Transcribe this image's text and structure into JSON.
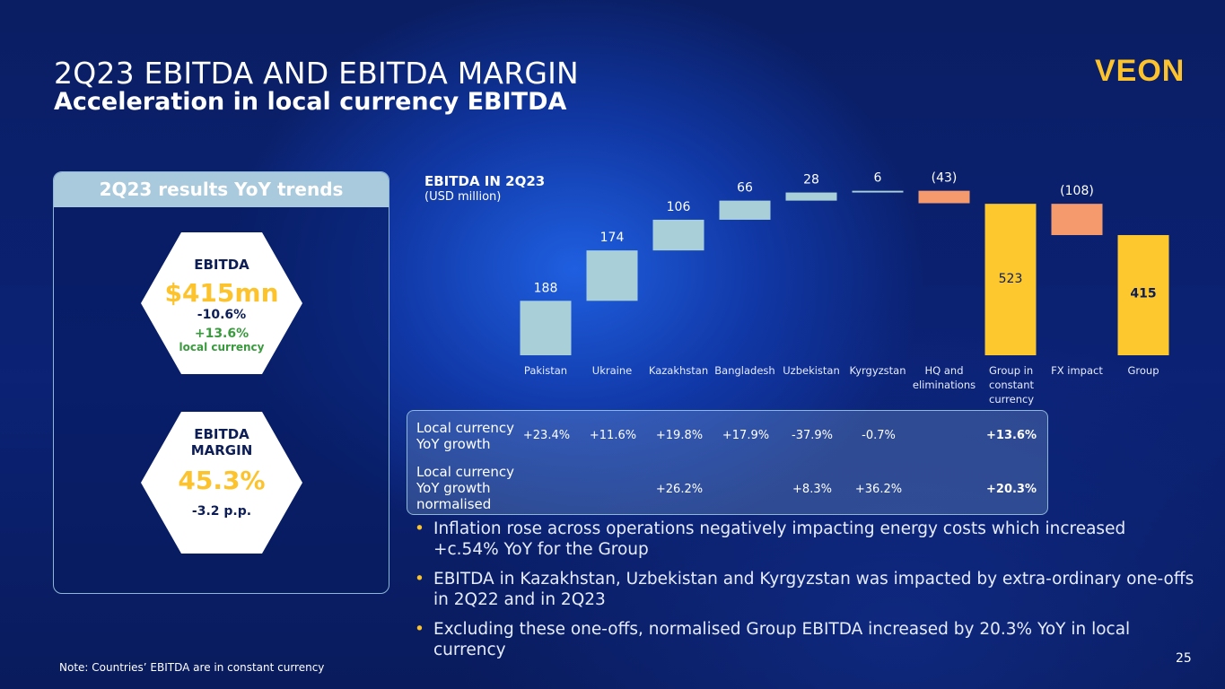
{
  "header": {
    "title": "2Q23 EBITDA AND EBITDA MARGIN",
    "subtitle": "Acceleration in local currency EBITDA",
    "logo_text": "VEON"
  },
  "panel": {
    "heading": "2Q23 results YoY trends",
    "ebitda": {
      "label": "EBITDA",
      "value": "$415mn",
      "change": "-10.6%",
      "local_change": "+13.6%",
      "local_label": "local currency"
    },
    "margin": {
      "label_line1": "EBITDA",
      "label_line2": "MARGIN",
      "value": "45.3%",
      "change": "-3.2 p.p."
    }
  },
  "chart_data": {
    "type": "waterfall",
    "title": "EBITDA IN 2Q23",
    "unit": "(USD million)",
    "categories": [
      "Pakistan",
      "Ukraine",
      "Kazakhstan",
      "Bangladesh",
      "Uzbekistan",
      "Kyrgyzstan",
      "HQ and eliminations",
      "Group in constant currency",
      "FX impact",
      "Group"
    ],
    "category_lines": [
      [
        "Pakistan"
      ],
      [
        "Ukraine"
      ],
      [
        "Kazakhstan"
      ],
      [
        "Bangladesh"
      ],
      [
        "Uzbekistan"
      ],
      [
        "Kyrgyzstan"
      ],
      [
        "HQ and",
        "eliminations"
      ],
      [
        "Group in",
        "constant",
        "currency"
      ],
      [
        "FX impact"
      ],
      [
        "Group"
      ]
    ],
    "values": [
      188,
      174,
      106,
      66,
      28,
      6,
      -43,
      523,
      -108,
      415
    ],
    "labels": [
      "188",
      "174",
      "106",
      "66",
      "28",
      "6",
      "(43)",
      "523",
      "(108)",
      "415"
    ],
    "kinds": [
      "delta",
      "delta",
      "delta",
      "delta",
      "delta",
      "delta",
      "delta",
      "total",
      "delta",
      "total"
    ],
    "ylim": [
      0,
      570
    ],
    "colors": {
      "positive": "#a9cfd9",
      "negative": "#f59a6c",
      "total": "#fcc82e"
    }
  },
  "table": {
    "rows": [
      {
        "label_lines": [
          "Local currency",
          "YoY growth"
        ],
        "cells": [
          "+23.4%",
          "+11.6%",
          "+19.8%",
          "+17.9%",
          "-37.9%",
          "-0.7%",
          "",
          "+13.6%"
        ]
      },
      {
        "label_lines": [
          "Local currency",
          "YoY growth",
          "normalised"
        ],
        "cells": [
          "",
          "",
          "+26.2%",
          "",
          "+8.3%",
          "+36.2%",
          "",
          "+20.3%"
        ]
      }
    ]
  },
  "bullets": [
    "Inflation rose across operations negatively impacting energy costs which increased +c.54% YoY for the Group",
    "EBITDA in Kazakhstan, Uzbekistan and Kyrgyzstan was impacted by extra-ordinary one-offs in 2Q22 and in 2Q23",
    "Excluding these one-offs, normalised Group EBITDA increased by 20.3% YoY in local currency"
  ],
  "bullet_symbol": "•",
  "footer": {
    "note": "Note: Countries’ EBITDA are in constant currency",
    "page_number": "25"
  }
}
